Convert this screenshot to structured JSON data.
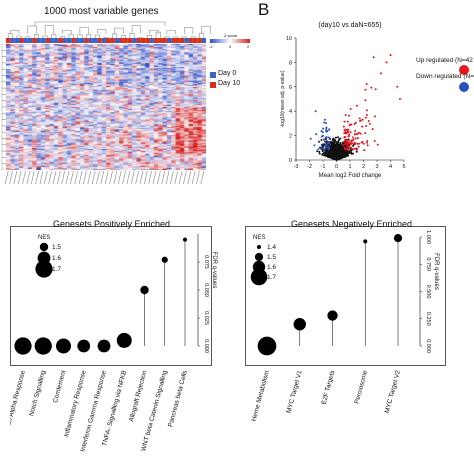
{
  "panel_b_label": "B",
  "heatmap": {
    "title": "1000 most variable genes",
    "colorkey_title": "Z score",
    "colorkey_ticks": [
      "-2",
      "0",
      "2"
    ],
    "legend": [
      {
        "label": "Day 0",
        "color": "#3a63c8"
      },
      {
        "label": "Day 10",
        "color": "#d6311d"
      }
    ],
    "colors": {
      "low": "#2f4fc9",
      "mid": "#ffffff",
      "high": "#d61f1f"
    }
  },
  "chart_data": [
    {
      "type": "scatter",
      "title": "(day10 vs daN=655)",
      "xlabel": "Mean log2 Fold change",
      "ylabel": "-log10(mean adj. p-value)",
      "xlim": [
        -3,
        5
      ],
      "ylim": [
        0,
        10
      ],
      "xticks": [
        "-3",
        "-2",
        "-1",
        "0",
        "1",
        "2",
        "3",
        "4",
        "5"
      ],
      "yticks": [
        "0",
        "2",
        "4",
        "6",
        "8",
        "10"
      ],
      "legend": [
        {
          "label": "Up regulated (N=42",
          "color": "#e8151f"
        },
        {
          "label": "Down regulated (N=",
          "color": "#2a4fbf"
        }
      ]
    },
    {
      "type": "scatter",
      "title": "Genesets Positively Enriched",
      "categories": [
        "Interferon Alpha Response",
        "Notch Signalling",
        "Comlement",
        "Inflammatory Response",
        "Interferon Gamma Response",
        "TNFA- Signalling via NFKB",
        "Allograft Rejection",
        "WNT beta Catenin Signalling",
        "Pancreas beta Cells"
      ],
      "fdr": [
        0.0,
        0.0,
        0.0,
        0.0,
        0.0,
        0.005,
        0.05,
        0.077,
        0.095
      ],
      "nes": [
        1.7,
        1.7,
        1.65,
        1.6,
        1.6,
        1.65,
        1.5,
        1.45,
        1.4
      ],
      "ylabel": "FDR q-values",
      "ylim": [
        0,
        0.1
      ],
      "yticks": [
        "0.000",
        "0.025",
        "0.050",
        "0.075"
      ],
      "size_legend": {
        "title": "NES",
        "labels": [
          "1.5",
          "1.6",
          "1.7"
        ],
        "values": [
          1.5,
          1.6,
          1.7
        ]
      }
    },
    {
      "type": "scatter",
      "title": "Genesets Negatively Enriched",
      "categories": [
        "Heme Metabolism",
        "MYC Target V1",
        "E2F Targets",
        "Peroxisome",
        "MYC Target V2"
      ],
      "fdr": [
        0.0,
        0.2,
        0.28,
        0.96,
        0.99
      ],
      "nes": [
        1.75,
        1.6,
        1.55,
        1.4,
        1.5
      ],
      "ylabel": "FDR q-values",
      "ylim": [
        0,
        1
      ],
      "yticks": [
        "0.000",
        "0.250",
        "0.500",
        "0.750",
        "1.000"
      ],
      "size_legend": {
        "title": "NES",
        "labels": [
          "1.4",
          "1.5",
          "1.6",
          "1.7"
        ],
        "values": [
          1.4,
          1.5,
          1.6,
          1.7
        ]
      }
    }
  ]
}
